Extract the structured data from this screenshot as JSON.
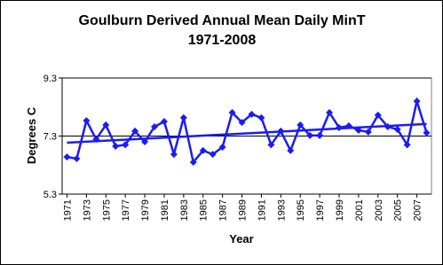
{
  "chart_data": {
    "type": "line",
    "title": "Goulburn Derived Annual Mean Daily MinT",
    "subtitle": "1971-2008",
    "x_label": "Year",
    "y_label": "Degrees C",
    "x": [
      1971,
      1972,
      1973,
      1974,
      1975,
      1976,
      1977,
      1978,
      1979,
      1980,
      1981,
      1982,
      1983,
      1984,
      1985,
      1986,
      1987,
      1988,
      1989,
      1990,
      1991,
      1992,
      1993,
      1994,
      1995,
      1996,
      1997,
      1998,
      1999,
      2000,
      2001,
      2002,
      2003,
      2004,
      2005,
      2006,
      2007,
      2008
    ],
    "series": [
      {
        "color": "#1c1cf0",
        "values": [
          6.58,
          6.52,
          7.83,
          7.19,
          7.68,
          6.95,
          7.0,
          7.47,
          7.1,
          7.62,
          7.8,
          6.67,
          7.93,
          6.4,
          6.8,
          6.67,
          6.92,
          8.11,
          7.77,
          8.05,
          7.93,
          7.0,
          7.47,
          6.8,
          7.68,
          7.32,
          7.32,
          8.11,
          7.59,
          7.65,
          7.5,
          7.44,
          8.02,
          7.62,
          7.53,
          7.0,
          8.5,
          7.41
        ]
      }
    ],
    "trendline": true,
    "xlim": [
      1970.5,
      2008.5
    ],
    "xticks": [
      1971,
      1973,
      1975,
      1977,
      1979,
      1981,
      1983,
      1985,
      1987,
      1989,
      1991,
      1993,
      1995,
      1997,
      1999,
      2001,
      2003,
      2005,
      2007
    ],
    "ylim": [
      5.3,
      9.3
    ],
    "yticks": [
      5.3,
      7.3,
      9.3
    ],
    "grid": true
  }
}
